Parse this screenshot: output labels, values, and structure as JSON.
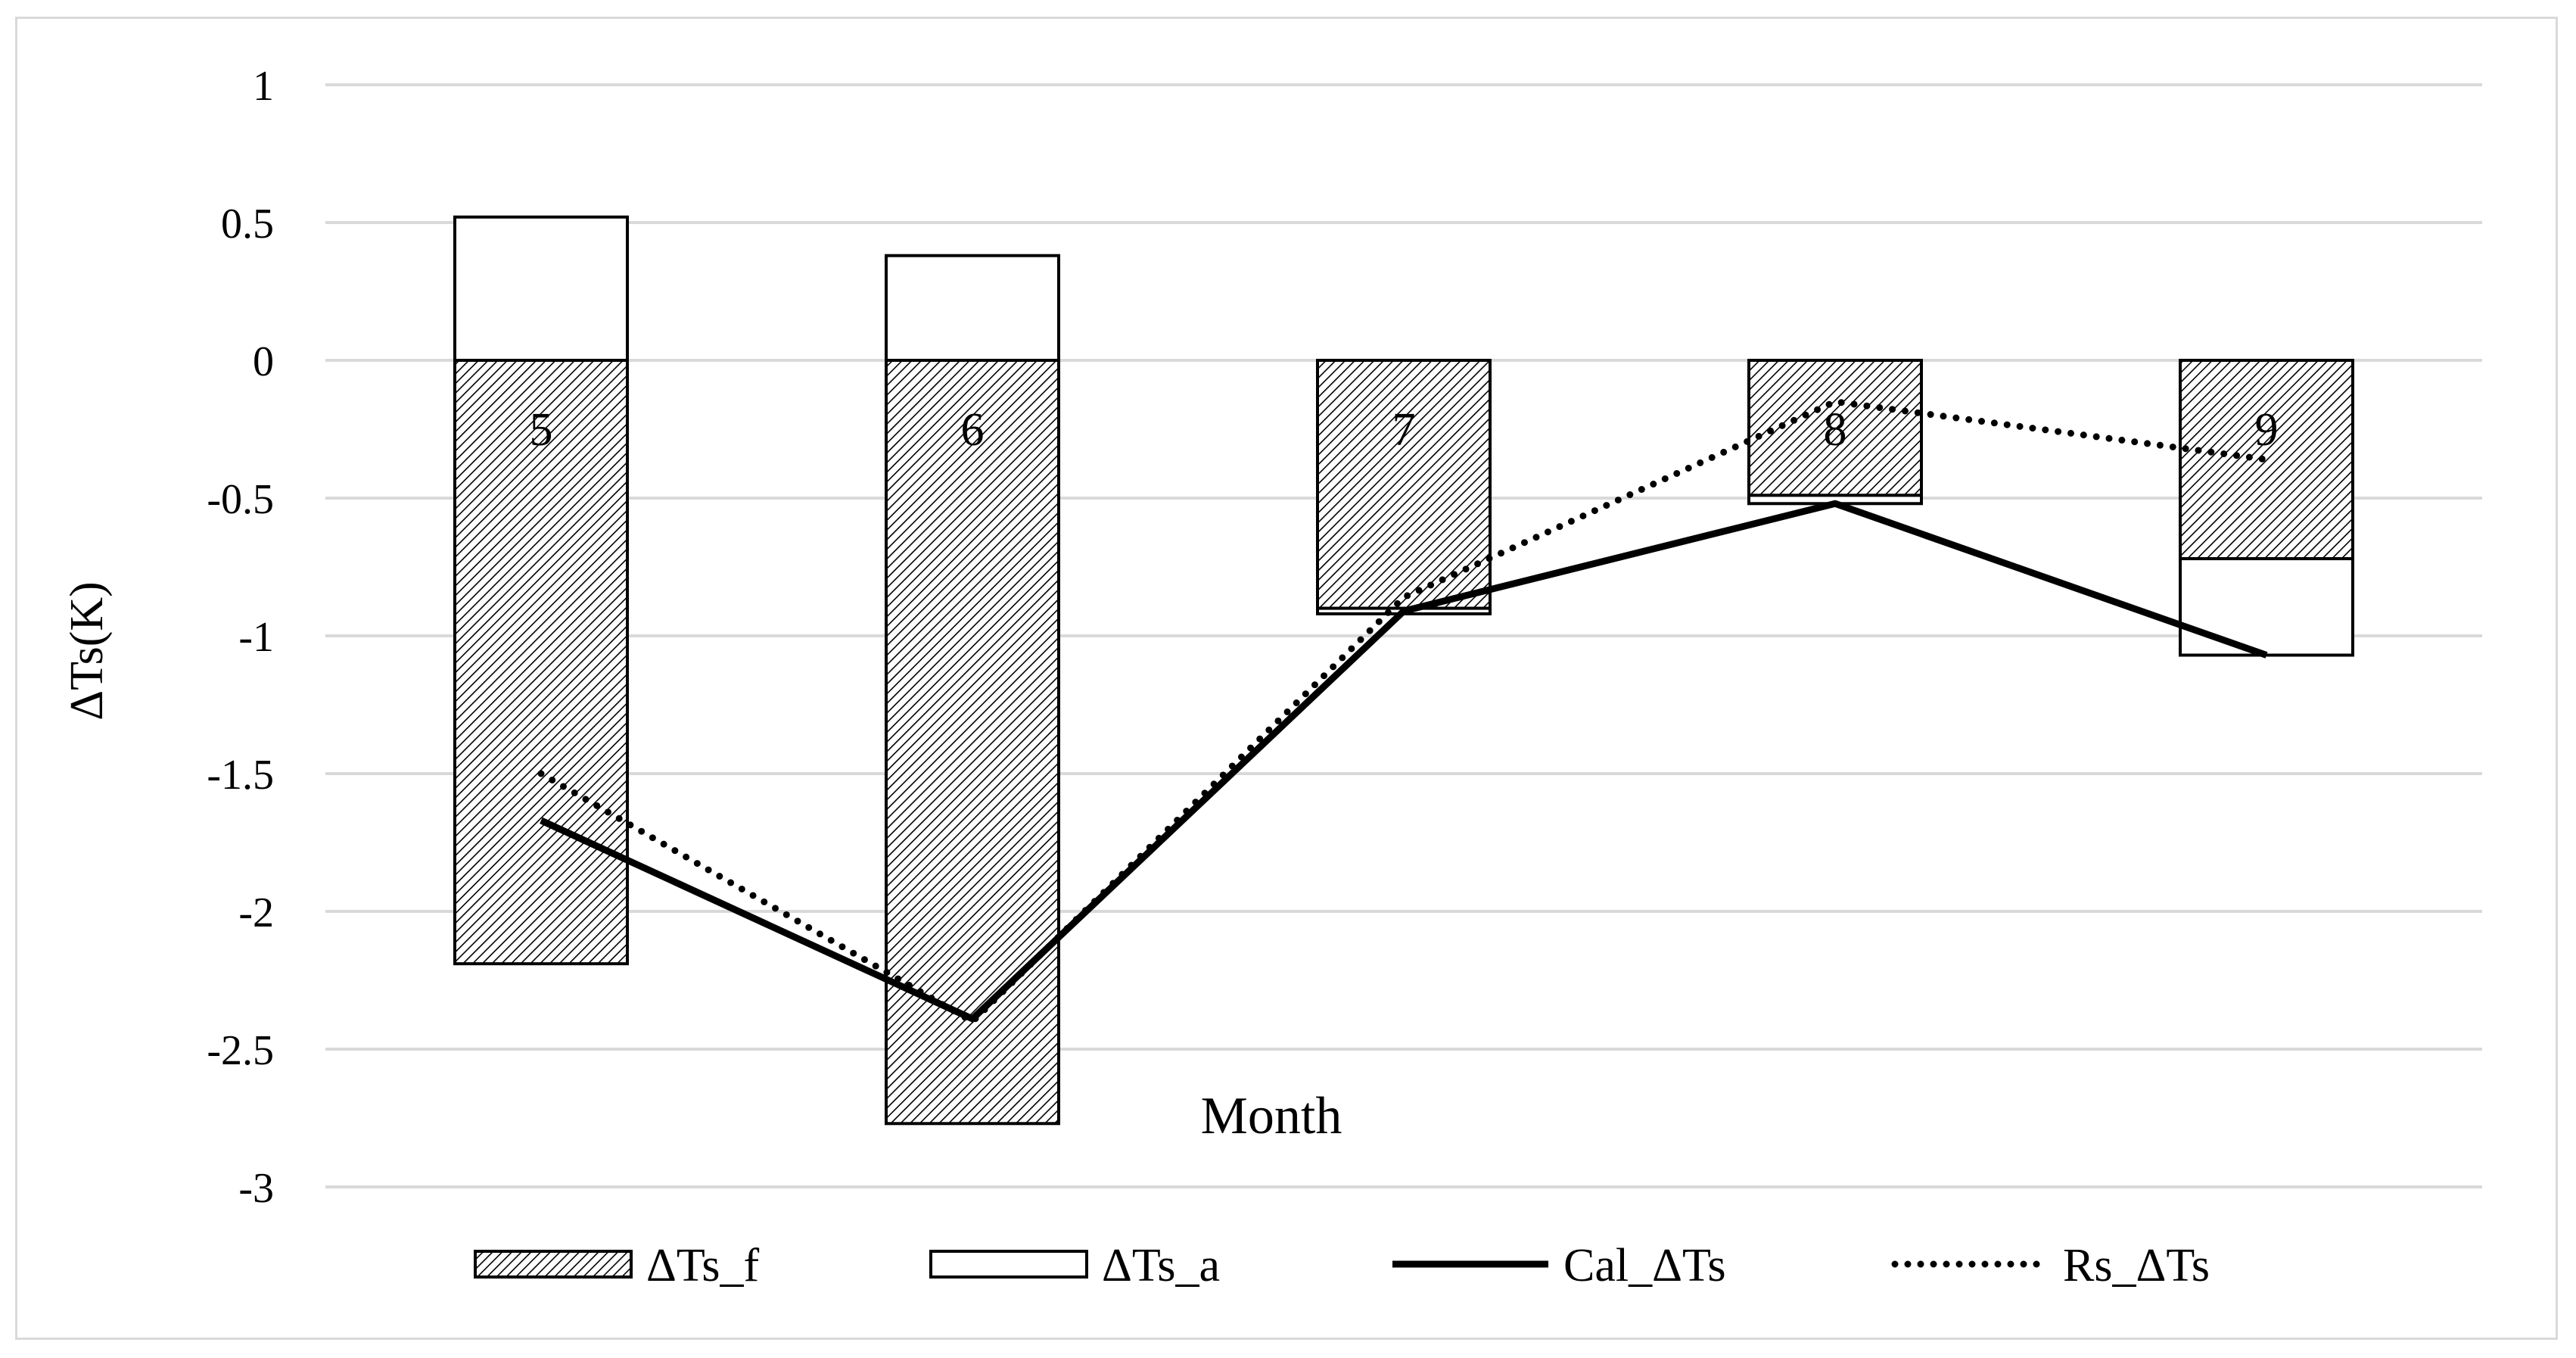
{
  "chart_data": {
    "type": "bar",
    "categories": [
      "5",
      "6",
      "7",
      "8",
      "9"
    ],
    "ylabel": "ΔTs(K)",
    "xlabel": "Month",
    "ylim": [
      -3,
      1
    ],
    "yticks": [
      1,
      0.5,
      0,
      -0.5,
      -1,
      -1.5,
      -2,
      -2.5,
      -3
    ],
    "grid": true,
    "legend_position": "bottom",
    "series": [
      {
        "name": "ΔTs_f",
        "kind": "bar",
        "fill": "hatched",
        "values": [
          -2.19,
          -2.77,
          -0.9,
          -0.49,
          -0.72
        ]
      },
      {
        "name": "ΔTs_a",
        "kind": "bar",
        "fill": "white",
        "values": [
          0.52,
          0.38,
          -0.02,
          -0.03,
          -0.35
        ]
      },
      {
        "name": "Cal_ΔTs",
        "kind": "line",
        "style": "solid",
        "values": [
          -1.67,
          -2.39,
          -0.91,
          -0.52,
          -1.07
        ]
      },
      {
        "name": "Rs_ΔTs",
        "kind": "line",
        "style": "dotted",
        "values": [
          -1.5,
          -2.4,
          -0.86,
          -0.15,
          -0.36
        ]
      }
    ]
  },
  "colors": {
    "grid": "#d9d9d9",
    "ink": "#000000",
    "background": "#ffffff"
  }
}
